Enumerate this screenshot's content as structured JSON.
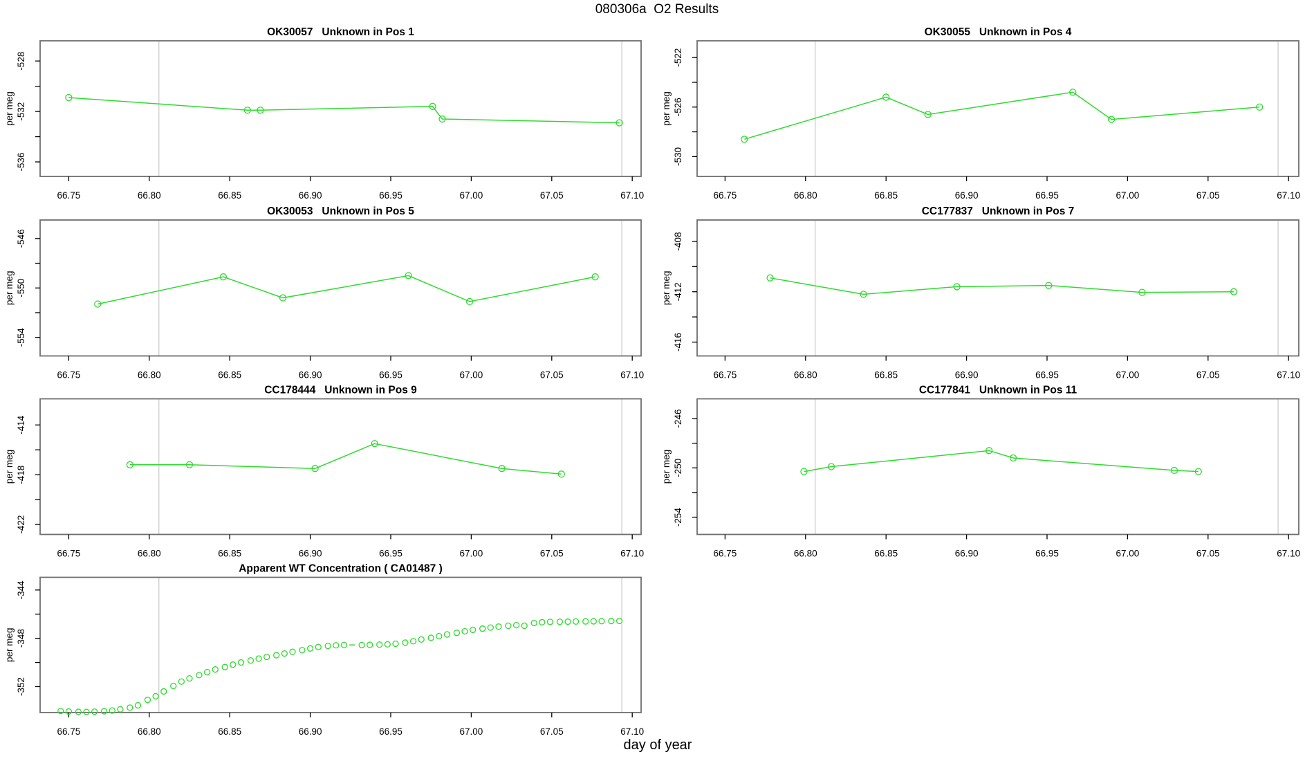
{
  "page": {
    "title": "080306a  O2 Results",
    "xlabel": "day of year",
    "background": "#ffffff"
  },
  "colors": {
    "series": "#2ddc2d",
    "reference_line": "#c9c9c9",
    "frame": "#6e6e6e",
    "text": "#000000"
  },
  "axes_shared": {
    "y_axis_label": "per meg",
    "x_ticks": [
      66.75,
      66.8,
      66.85,
      66.9,
      66.95,
      67.0,
      67.05,
      67.1
    ],
    "x_tick_labels": [
      "66.75",
      "66.80",
      "66.85",
      "66.90",
      "66.95",
      "67.00",
      "67.05",
      "67.10"
    ],
    "xlim": [
      66.732,
      67.106
    ],
    "reference_vlines": [
      66.806,
      67.0935
    ],
    "grid": "off",
    "legend": "none"
  },
  "chart_data": [
    {
      "type": "line",
      "title": "OK30057   Unknown in Pos 1",
      "ylabel": "per meg",
      "row": 0,
      "col": 0,
      "ylim": [
        -537.15,
        -526.4
      ],
      "yticks": [
        {
          "v": -528,
          "label": "-528"
        },
        {
          "v": -530,
          "label": ""
        },
        {
          "v": -532,
          "label": "-532"
        },
        {
          "v": -534,
          "label": ""
        },
        {
          "v": -536,
          "label": "-536"
        }
      ],
      "points": [
        [
          66.75,
          -530.9
        ],
        [
          66.861,
          -531.9
        ],
        [
          66.869,
          -531.9
        ],
        [
          66.976,
          -531.6
        ],
        [
          66.982,
          -532.6
        ],
        [
          67.092,
          -532.9
        ]
      ]
    },
    {
      "type": "line",
      "title": "OK30055   Unknown in Pos 4",
      "ylabel": "per meg",
      "row": 0,
      "col": 1,
      "ylim": [
        -531.6,
        -520.65
      ],
      "yticks": [
        {
          "v": -522,
          "label": "-522"
        },
        {
          "v": -524,
          "label": ""
        },
        {
          "v": -526,
          "label": "-526"
        },
        {
          "v": -528,
          "label": ""
        },
        {
          "v": -530,
          "label": "-530"
        }
      ],
      "points": [
        [
          66.762,
          -528.6
        ],
        [
          66.85,
          -525.2
        ],
        [
          66.876,
          -526.6
        ],
        [
          66.966,
          -524.8
        ],
        [
          66.99,
          -527.0
        ],
        [
          67.082,
          -526.0
        ]
      ]
    },
    {
      "type": "line",
      "title": "OK30053   Unknown in Pos 5",
      "ylabel": "per meg",
      "row": 1,
      "col": 0,
      "ylim": [
        -555.5,
        -544.5
      ],
      "yticks": [
        {
          "v": -546,
          "label": "-546"
        },
        {
          "v": -548,
          "label": ""
        },
        {
          "v": -550,
          "label": "-550"
        },
        {
          "v": -552,
          "label": ""
        },
        {
          "v": -554,
          "label": "-554"
        }
      ],
      "points": [
        [
          66.768,
          -551.3
        ],
        [
          66.846,
          -549.1
        ],
        [
          66.883,
          -550.8
        ],
        [
          66.961,
          -549.0
        ],
        [
          66.999,
          -551.1
        ],
        [
          67.077,
          -549.1
        ]
      ]
    },
    {
      "type": "line",
      "title": "CC177837   Unknown in Pos 7",
      "ylabel": "per meg",
      "row": 1,
      "col": 1,
      "ylim": [
        -417.1,
        -406.3
      ],
      "yticks": [
        {
          "v": -408,
          "label": "-408"
        },
        {
          "v": -410,
          "label": ""
        },
        {
          "v": -412,
          "label": "-412"
        },
        {
          "v": -414,
          "label": ""
        },
        {
          "v": -416,
          "label": "-416"
        }
      ],
      "points": [
        [
          66.778,
          -410.9
        ],
        [
          66.836,
          -412.2
        ],
        [
          66.894,
          -411.6
        ],
        [
          66.951,
          -411.5
        ],
        [
          67.009,
          -412.05
        ],
        [
          67.066,
          -412.0
        ]
      ]
    },
    {
      "type": "line",
      "title": "CC178444   Unknown in Pos 9",
      "ylabel": "per meg",
      "row": 2,
      "col": 0,
      "ylim": [
        -422.8,
        -411.9
      ],
      "yticks": [
        {
          "v": -414,
          "label": "-414"
        },
        {
          "v": -416,
          "label": ""
        },
        {
          "v": -418,
          "label": "-418"
        },
        {
          "v": -420,
          "label": ""
        },
        {
          "v": -422,
          "label": "-422"
        }
      ],
      "points": [
        [
          66.788,
          -417.2
        ],
        [
          66.825,
          -417.2
        ],
        [
          66.903,
          -417.5
        ],
        [
          66.94,
          -415.5
        ],
        [
          67.019,
          -417.5
        ],
        [
          67.056,
          -417.95
        ]
      ]
    },
    {
      "type": "line",
      "title": "CC177841   Unknown in Pos 11",
      "ylabel": "per meg",
      "row": 2,
      "col": 1,
      "ylim": [
        -255.4,
        -244.4
      ],
      "yticks": [
        {
          "v": -246,
          "label": "-246"
        },
        {
          "v": -248,
          "label": ""
        },
        {
          "v": -250,
          "label": "-250"
        },
        {
          "v": -252,
          "label": ""
        },
        {
          "v": -254,
          "label": "-254"
        }
      ],
      "points": [
        [
          66.799,
          -250.3
        ],
        [
          66.816,
          -249.9
        ],
        [
          66.914,
          -248.6
        ],
        [
          66.929,
          -249.2
        ],
        [
          67.029,
          -250.2
        ],
        [
          67.044,
          -250.3
        ]
      ]
    },
    {
      "type": "scatter",
      "title": "Apparent WT Concentration ( CA01487 )",
      "ylabel": "per meg",
      "row": 3,
      "col": 0,
      "ylim": [
        -354.15,
        -342.95
      ],
      "yticks": [
        {
          "v": -344,
          "label": "-344"
        },
        {
          "v": -346,
          "label": ""
        },
        {
          "v": -348,
          "label": "-348"
        },
        {
          "v": -350,
          "label": ""
        },
        {
          "v": -352,
          "label": "-352"
        }
      ],
      "dash_point": [
        66.926,
        -348.55
      ],
      "points": [
        [
          66.745,
          -354.02
        ],
        [
          66.75,
          -354.06
        ],
        [
          66.756,
          -354.09
        ],
        [
          66.761,
          -354.1
        ],
        [
          66.766,
          -354.08
        ],
        [
          66.772,
          -354.04
        ],
        [
          66.777,
          -353.98
        ],
        [
          66.782,
          -353.88
        ],
        [
          66.788,
          -353.74
        ],
        [
          66.793,
          -353.55
        ],
        [
          66.799,
          -353.1
        ],
        [
          66.804,
          -352.8
        ],
        [
          66.809,
          -352.4
        ],
        [
          66.815,
          -351.95
        ],
        [
          66.82,
          -351.58
        ],
        [
          66.825,
          -351.32
        ],
        [
          66.831,
          -351.05
        ],
        [
          66.836,
          -350.8
        ],
        [
          66.841,
          -350.58
        ],
        [
          66.847,
          -350.38
        ],
        [
          66.852,
          -350.18
        ],
        [
          66.857,
          -350.0
        ],
        [
          66.863,
          -349.84
        ],
        [
          66.868,
          -349.68
        ],
        [
          66.873,
          -349.54
        ],
        [
          66.879,
          -349.4
        ],
        [
          66.884,
          -349.26
        ],
        [
          66.889,
          -349.12
        ],
        [
          66.895,
          -348.98
        ],
        [
          66.9,
          -348.84
        ],
        [
          66.905,
          -348.72
        ],
        [
          66.911,
          -348.63
        ],
        [
          66.916,
          -348.58
        ],
        [
          66.921,
          -348.55
        ],
        [
          66.932,
          -348.56
        ],
        [
          66.937,
          -348.54
        ],
        [
          66.943,
          -348.52
        ],
        [
          66.948,
          -348.5
        ],
        [
          66.953,
          -348.45
        ],
        [
          66.959,
          -348.36
        ],
        [
          66.964,
          -348.24
        ],
        [
          66.969,
          -348.1
        ],
        [
          66.975,
          -347.96
        ],
        [
          66.98,
          -347.82
        ],
        [
          66.985,
          -347.68
        ],
        [
          66.991,
          -347.55
        ],
        [
          66.996,
          -347.42
        ],
        [
          67.001,
          -347.3
        ],
        [
          67.007,
          -347.2
        ],
        [
          67.012,
          -347.11
        ],
        [
          67.017,
          -347.03
        ],
        [
          67.023,
          -346.96
        ],
        [
          67.028,
          -346.91
        ],
        [
          67.033,
          -346.96
        ],
        [
          67.039,
          -346.73
        ],
        [
          67.044,
          -346.67
        ],
        [
          67.049,
          -346.64
        ],
        [
          67.055,
          -346.63
        ],
        [
          67.06,
          -346.62
        ],
        [
          67.065,
          -346.61
        ],
        [
          67.071,
          -346.6
        ],
        [
          67.076,
          -346.59
        ],
        [
          67.081,
          -346.58
        ],
        [
          67.087,
          -346.57
        ],
        [
          67.092,
          -346.56
        ]
      ]
    }
  ]
}
